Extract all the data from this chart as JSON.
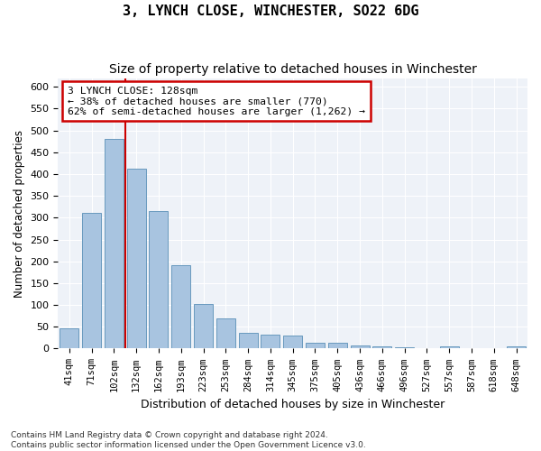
{
  "title": "3, LYNCH CLOSE, WINCHESTER, SO22 6DG",
  "subtitle": "Size of property relative to detached houses in Winchester",
  "xlabel": "Distribution of detached houses by size in Winchester",
  "ylabel": "Number of detached properties",
  "categories": [
    "41sqm",
    "71sqm",
    "102sqm",
    "132sqm",
    "162sqm",
    "193sqm",
    "223sqm",
    "253sqm",
    "284sqm",
    "314sqm",
    "345sqm",
    "375sqm",
    "405sqm",
    "436sqm",
    "466sqm",
    "496sqm",
    "527sqm",
    "557sqm",
    "587sqm",
    "618sqm",
    "648sqm"
  ],
  "values": [
    47,
    312,
    480,
    412,
    315,
    191,
    103,
    70,
    37,
    32,
    30,
    13,
    14,
    8,
    5,
    3,
    0,
    5,
    0,
    0,
    5
  ],
  "bar_color": "#a8c4e0",
  "bar_edge_color": "#6899be",
  "vline_x": 2.5,
  "annotation_line1": "3 LYNCH CLOSE: 128sqm",
  "annotation_line2": "← 38% of detached houses are smaller (770)",
  "annotation_line3": "62% of semi-detached houses are larger (1,262) →",
  "annotation_box_color": "#ffffff",
  "annotation_box_edge": "#cc0000",
  "vline_color": "#cc0000",
  "ylim": [
    0,
    620
  ],
  "yticks": [
    0,
    50,
    100,
    150,
    200,
    250,
    300,
    350,
    400,
    450,
    500,
    550,
    600
  ],
  "footer1": "Contains HM Land Registry data © Crown copyright and database right 2024.",
  "footer2": "Contains public sector information licensed under the Open Government Licence v3.0.",
  "bg_color": "#eef2f8",
  "title_fontsize": 11,
  "subtitle_fontsize": 10
}
